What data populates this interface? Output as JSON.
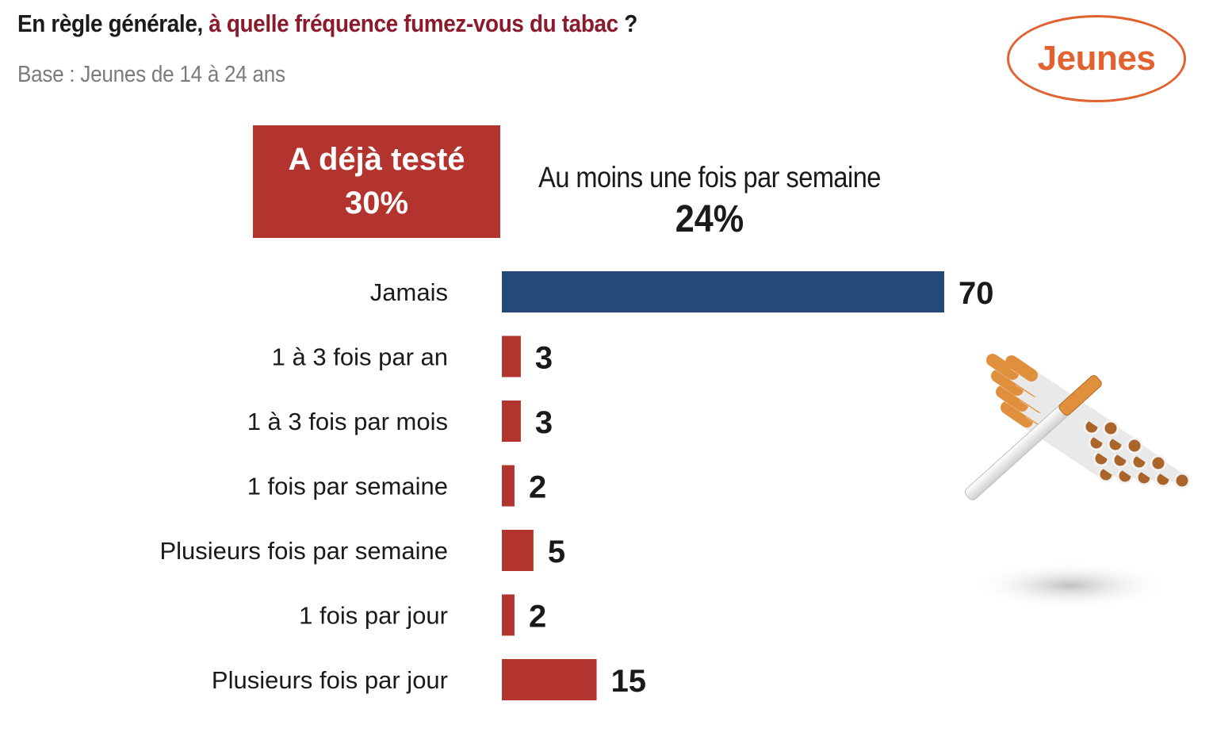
{
  "header": {
    "title_prefix": "En règle générale, ",
    "title_accent": "à quelle fréquence fumez-vous du tabac",
    "title_suffix": " ?",
    "base": "Base : Jeunes de 14 à 24 ans",
    "badge": "Jeunes"
  },
  "summary": {
    "tested_label": "A déjà testé",
    "tested_value": "30%",
    "weekly_label": "Au moins une fois par semaine",
    "weekly_value": "24%"
  },
  "illustration": {
    "icon": "cigarettes-icon"
  },
  "colors": {
    "never": "#264a78",
    "smoker": "#b3342f",
    "accent": "#8c1a2c",
    "badge": "#e2622f"
  },
  "chart_data": {
    "type": "bar",
    "orientation": "horizontal",
    "categories": [
      "Jamais",
      "1 à 3 fois par an",
      "1 à 3 fois par mois",
      "1 fois par semaine",
      "Plusieurs fois par semaine",
      "1 fois par jour",
      "Plusieurs fois par jour"
    ],
    "values": [
      70,
      3,
      3,
      2,
      5,
      2,
      15
    ],
    "value_labels": [
      "70",
      "3",
      "3",
      "2",
      "5",
      "2",
      "15"
    ],
    "bar_colors": [
      "#264a78",
      "#b3342f",
      "#b3342f",
      "#b3342f",
      "#b3342f",
      "#b3342f",
      "#b3342f"
    ],
    "xlim": [
      0,
      70
    ],
    "grid": false,
    "legend": "none"
  }
}
